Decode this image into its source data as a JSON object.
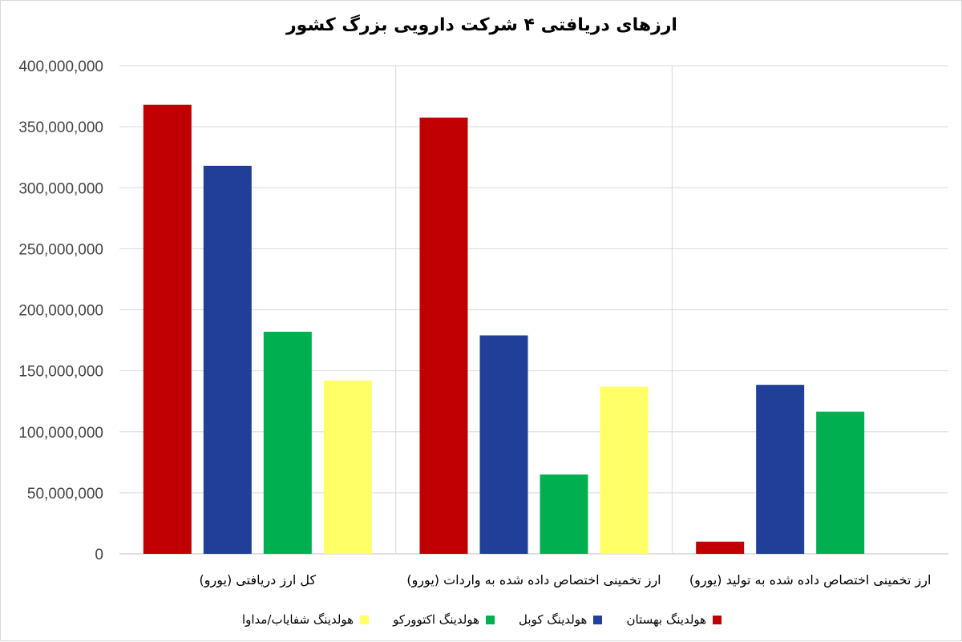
{
  "chart_data": {
    "type": "bar",
    "title": "ارزهای دریافتی ۴ شرکت دارویی بزرگ کشور",
    "categories": [
      "کل ارز دریافتی (یورو)",
      "ارز تخمینی اختصاص داده شده به واردات (یورو)",
      "ارز تخمینی اختصاص داده شده به تولید (یورو)"
    ],
    "series": [
      {
        "name": "هولدینگ بهستان",
        "color": "#c00000",
        "values": [
          368000000,
          357500000,
          10000000
        ]
      },
      {
        "name": "هولدینگ کوبل",
        "color": "#1f3f99",
        "values": [
          318000000,
          179000000,
          138500000
        ]
      },
      {
        "name": "هولدینگ اکتوورکو",
        "color": "#00b050",
        "values": [
          182000000,
          65000000,
          116500000
        ]
      },
      {
        "name": "هولدینگ شفایاب/مداوا",
        "color": "#ffff66",
        "values": [
          142000000,
          137000000,
          0
        ]
      }
    ],
    "yticks": [
      "0",
      "50,000,000",
      "100,000,000",
      "150,000,000",
      "200,000,000",
      "250,000,000",
      "300,000,000",
      "350,000,000",
      "400,000,000"
    ],
    "ylim": [
      0,
      400000000
    ],
    "grid": true,
    "legend_position": "bottom"
  }
}
